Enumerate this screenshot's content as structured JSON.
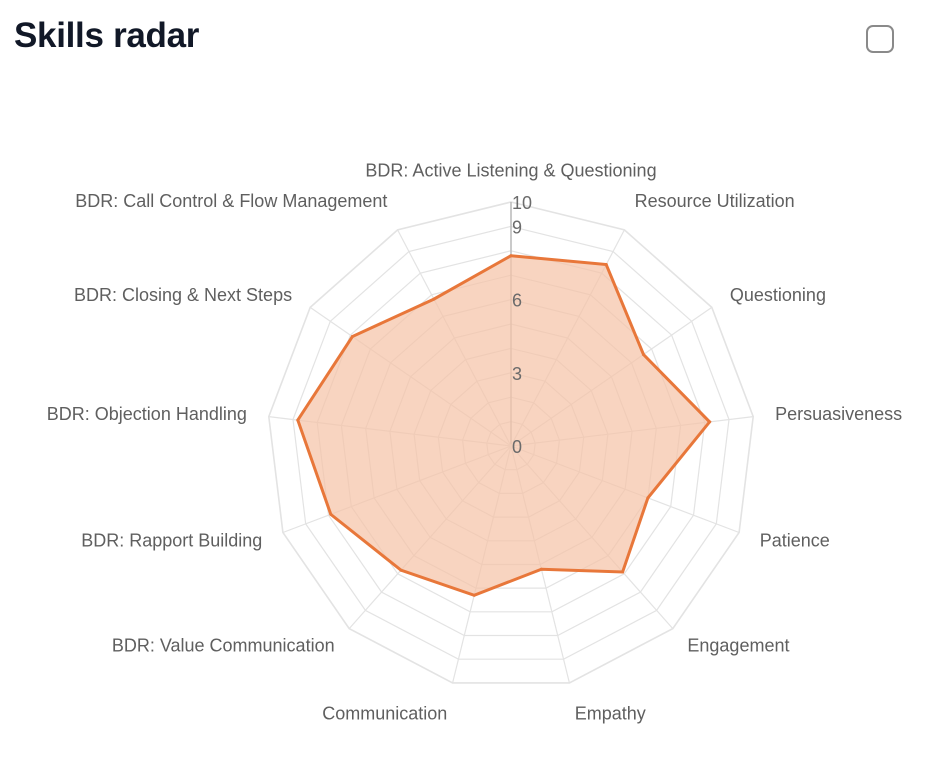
{
  "header": {
    "title": "Skills radar"
  },
  "chart_data": {
    "type": "radar",
    "title": "Skills radar",
    "rlim": [
      0,
      10
    ],
    "r_ticks": [
      "0",
      "3",
      "6",
      "9",
      "10"
    ],
    "r_tick_values": [
      0,
      3,
      6,
      9,
      10
    ],
    "grid": true,
    "categories": [
      "BDR: Active Listening & Questioning",
      "Resource Utilization",
      "Questioning",
      "Persuasiveness",
      "Patience",
      "Engagement",
      "Empathy",
      "Communication",
      "BDR: Value Communication",
      "BDR: Rapport Building",
      "BDR: Objection Handling",
      "BDR: Closing & Next Steps",
      "BDR: Call Control & Flow Management"
    ],
    "series": [
      {
        "values": [
          7.8,
          8.4,
          6.6,
          8.2,
          6.0,
          6.9,
          5.2,
          6.3,
          6.8,
          7.9,
          8.8,
          7.9,
          6.8
        ]
      }
    ],
    "colors": {
      "line": "#E8773A",
      "fill": "#F5C4A7",
      "grid": "#e3e3e3",
      "axis": "#bdbdbd"
    }
  }
}
